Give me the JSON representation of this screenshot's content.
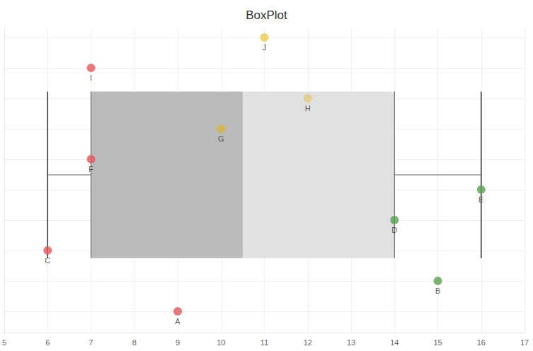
{
  "chart_data": {
    "type": "boxplot",
    "title": "BoxPlot",
    "box": {
      "min": 6,
      "q1": 7,
      "median": 10.5,
      "q3": 14,
      "max": 16
    },
    "labels": [
      "A",
      "B",
      "C",
      "D",
      "E",
      "F",
      "G",
      "H",
      "I",
      "J"
    ],
    "x": [
      9,
      15,
      6,
      14,
      16,
      7,
      10,
      12,
      7,
      11
    ],
    "y": [
      1,
      2,
      3,
      4,
      5,
      6,
      7,
      8,
      9,
      10
    ],
    "colors": [
      "#e15759",
      "#59a14f",
      "#e15759",
      "#59a14f",
      "#59a14f",
      "#e15759",
      "#d9b43a",
      "#e6c97a",
      "#e15759",
      "#edc948"
    ],
    "xlim": [
      5,
      17
    ],
    "xticks": [
      5,
      6,
      7,
      8,
      9,
      10,
      11,
      12,
      13,
      14,
      15,
      16,
      17
    ],
    "ylim": [
      0.3,
      10.3
    ],
    "yticks": [
      1,
      2,
      3,
      4,
      5,
      6,
      7,
      8,
      9,
      10
    ],
    "grid": true,
    "tick_labels": "x",
    "marker": "circle"
  }
}
